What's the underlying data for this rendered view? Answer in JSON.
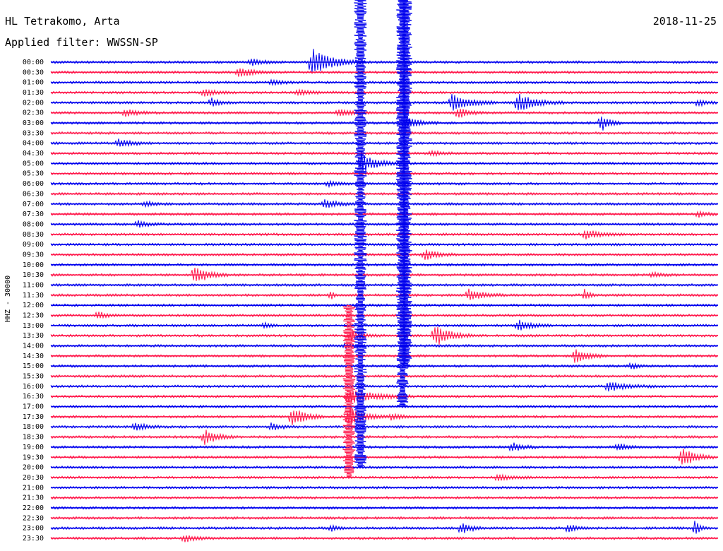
{
  "header": {
    "station": "HL Tetrakomo, Arta",
    "date": "2018-11-25",
    "filter": "Applied filter: WWSSN-SP"
  },
  "chart_data": {
    "type": "line",
    "subtype": "helicorder",
    "channel_label": "HHZ - 30000",
    "ylabels": [
      "00:00",
      "00:30",
      "01:00",
      "01:30",
      "02:00",
      "02:30",
      "03:00",
      "03:30",
      "04:00",
      "04:30",
      "05:00",
      "05:30",
      "06:00",
      "06:30",
      "07:00",
      "07:30",
      "08:00",
      "08:30",
      "09:00",
      "09:30",
      "10:00",
      "10:30",
      "11:00",
      "11:30",
      "12:00",
      "12:30",
      "13:00",
      "13:30",
      "14:00",
      "14:30",
      "15:00",
      "15:30",
      "16:00",
      "16:30",
      "17:00",
      "17:30",
      "18:00",
      "18:30",
      "19:00",
      "19:30",
      "20:00",
      "20:30",
      "21:00",
      "21:30",
      "22:00",
      "22:30",
      "23:00",
      "23:30"
    ],
    "colors": [
      "#0000ee",
      "#ff1a4d"
    ],
    "grid": false,
    "legend": "none",
    "events": [
      {
        "row": 0,
        "t": 0.39,
        "amp": 2.5,
        "dur": 0.08
      },
      {
        "row": 0,
        "t": 0.3,
        "amp": 0.6,
        "dur": 0.05
      },
      {
        "row": 1,
        "t": 0.28,
        "amp": 0.9,
        "dur": 0.06
      },
      {
        "row": 2,
        "t": 0.33,
        "amp": 0.4,
        "dur": 0.05
      },
      {
        "row": 3,
        "t": 0.23,
        "amp": 0.8,
        "dur": 0.04
      },
      {
        "row": 3,
        "t": 0.37,
        "amp": 0.5,
        "dur": 0.06
      },
      {
        "row": 4,
        "t": 0.6,
        "amp": 1.6,
        "dur": 0.07
      },
      {
        "row": 4,
        "t": 0.7,
        "amp": 1.6,
        "dur": 0.07
      },
      {
        "row": 4,
        "t": 0.24,
        "amp": 0.8,
        "dur": 0.03
      },
      {
        "row": 4,
        "t": 0.97,
        "amp": 0.6,
        "dur": 0.03
      },
      {
        "row": 5,
        "t": 0.11,
        "amp": 0.6,
        "dur": 0.05
      },
      {
        "row": 5,
        "t": 0.43,
        "amp": 0.7,
        "dur": 0.05
      },
      {
        "row": 5,
        "t": 0.61,
        "amp": 1.0,
        "dur": 0.04
      },
      {
        "row": 6,
        "t": 0.825,
        "amp": 1.6,
        "dur": 0.03
      },
      {
        "row": 6,
        "t": 0.53,
        "amp": 1.1,
        "dur": 0.05
      },
      {
        "row": 8,
        "t": 0.1,
        "amp": 0.8,
        "dur": 0.05
      },
      {
        "row": 9,
        "t": 0.57,
        "amp": 0.5,
        "dur": 0.04
      },
      {
        "row": 10,
        "t": 0.465,
        "amp": 1.8,
        "dur": 0.06
      },
      {
        "row": 12,
        "t": 0.415,
        "amp": 0.5,
        "dur": 0.04
      },
      {
        "row": 14,
        "t": 0.41,
        "amp": 0.8,
        "dur": 0.05
      },
      {
        "row": 14,
        "t": 0.14,
        "amp": 0.5,
        "dur": 0.04
      },
      {
        "row": 15,
        "t": 0.97,
        "amp": 0.6,
        "dur": 0.03
      },
      {
        "row": 16,
        "t": 0.13,
        "amp": 0.6,
        "dur": 0.04
      },
      {
        "row": 17,
        "t": 0.8,
        "amp": 0.9,
        "dur": 0.06
      },
      {
        "row": 19,
        "t": 0.56,
        "amp": 1.0,
        "dur": 0.05
      },
      {
        "row": 21,
        "t": 0.215,
        "amp": 1.9,
        "dur": 0.05
      },
      {
        "row": 21,
        "t": 0.9,
        "amp": 0.4,
        "dur": 0.04
      },
      {
        "row": 23,
        "t": 0.625,
        "amp": 1.1,
        "dur": 0.06
      },
      {
        "row": 23,
        "t": 0.8,
        "amp": 1.0,
        "dur": 0.02
      },
      {
        "row": 23,
        "t": 0.42,
        "amp": 0.8,
        "dur": 0.01
      },
      {
        "row": 25,
        "t": 0.07,
        "amp": 0.6,
        "dur": 0.04
      },
      {
        "row": 26,
        "t": 0.7,
        "amp": 1.0,
        "dur": 0.05
      },
      {
        "row": 26,
        "t": 0.32,
        "amp": 0.6,
        "dur": 0.02
      },
      {
        "row": 27,
        "t": 0.45,
        "amp": 0.9,
        "dur": 0.05
      },
      {
        "row": 27,
        "t": 0.575,
        "amp": 2.0,
        "dur": 0.06
      },
      {
        "row": 28,
        "t": 0.44,
        "amp": 0.5,
        "dur": 0.04
      },
      {
        "row": 29,
        "t": 0.785,
        "amp": 1.3,
        "dur": 0.05
      },
      {
        "row": 30,
        "t": 0.87,
        "amp": 0.8,
        "dur": 0.02
      },
      {
        "row": 32,
        "t": 0.835,
        "amp": 0.9,
        "dur": 0.07
      },
      {
        "row": 33,
        "t": 0.445,
        "amp": 1.4,
        "dur": 0.1
      },
      {
        "row": 35,
        "t": 0.36,
        "amp": 2.0,
        "dur": 0.05
      },
      {
        "row": 35,
        "t": 0.445,
        "amp": 1.8,
        "dur": 0.06
      },
      {
        "row": 35,
        "t": 0.51,
        "amp": 0.6,
        "dur": 0.04
      },
      {
        "row": 36,
        "t": 0.125,
        "amp": 0.9,
        "dur": 0.04
      },
      {
        "row": 36,
        "t": 0.33,
        "amp": 0.6,
        "dur": 0.04
      },
      {
        "row": 37,
        "t": 0.23,
        "amp": 1.3,
        "dur": 0.05
      },
      {
        "row": 38,
        "t": 0.69,
        "amp": 0.9,
        "dur": 0.04
      },
      {
        "row": 38,
        "t": 0.85,
        "amp": 0.6,
        "dur": 0.04
      },
      {
        "row": 39,
        "t": 0.945,
        "amp": 2.0,
        "dur": 0.05
      },
      {
        "row": 41,
        "t": 0.67,
        "amp": 0.6,
        "dur": 0.05
      },
      {
        "row": 46,
        "t": 0.615,
        "amp": 1.0,
        "dur": 0.04
      },
      {
        "row": 46,
        "t": 0.775,
        "amp": 0.8,
        "dur": 0.03
      },
      {
        "row": 46,
        "t": 0.42,
        "amp": 0.7,
        "dur": 0.02
      },
      {
        "row": 46,
        "t": 0.965,
        "amp": 1.4,
        "dur": 0.02
      },
      {
        "row": 47,
        "t": 0.2,
        "amp": 0.6,
        "dur": 0.05
      }
    ],
    "spikes": [
      {
        "row": 0,
        "t": 0.464,
        "up": 6.5,
        "down": 40.0
      },
      {
        "row": 0,
        "t": 0.527,
        "up": 6.5,
        "down": 34.0
      },
      {
        "row": 0,
        "t": 0.532,
        "up": 6.5,
        "down": 30.0
      },
      {
        "row": 25,
        "t": 0.447,
        "up": 1.0,
        "down": 16.0
      }
    ]
  }
}
